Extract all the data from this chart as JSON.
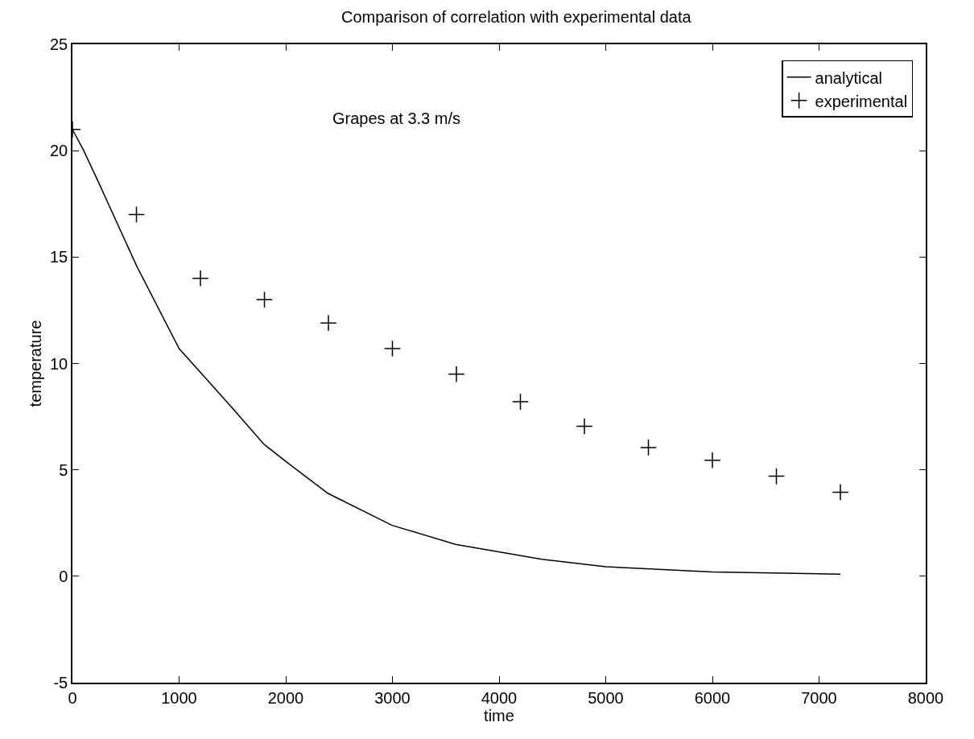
{
  "chart_data": {
    "type": "line",
    "title": "Comparison of correlation with experimental data",
    "xlabel": "time",
    "ylabel": "temperature",
    "annotations": [
      "Grapes at 3.3 m/s"
    ],
    "series": [
      {
        "name": "analytical",
        "color": "#000000",
        "line_style": "solid",
        "marker": "none",
        "x": [
          0,
          106,
          246,
          600,
          1000,
          1500,
          1796,
          2000,
          2394,
          2993,
          3592,
          4401,
          5000,
          6000,
          7200
        ],
        "values": [
          21,
          20,
          18.5,
          14.6,
          10.7,
          7.9,
          6.2,
          5.4,
          3.9,
          2.4,
          1.5,
          0.8,
          0.45,
          0.2,
          0.1
        ]
      },
      {
        "name": "experimental",
        "type": "scatter",
        "color": "#000000",
        "marker": "cross",
        "x": [
          0,
          600,
          1200,
          1800,
          2400,
          3000,
          3600,
          4200,
          4800,
          5400,
          6000,
          6600,
          7200
        ],
        "values": [
          21,
          17,
          14,
          13,
          11.9,
          10.7,
          9.5,
          8.2,
          7.05,
          6.05,
          5.45,
          4.7,
          3.95
        ]
      }
    ],
    "xlim": [
      0,
      8000
    ],
    "xticks": [
      0,
      1000,
      2000,
      3000,
      4000,
      5000,
      6000,
      7000,
      8000
    ],
    "ylim": [
      -5,
      25
    ],
    "yticks": [
      -5,
      0,
      5,
      10,
      15,
      20,
      25
    ],
    "legend": "top right"
  }
}
